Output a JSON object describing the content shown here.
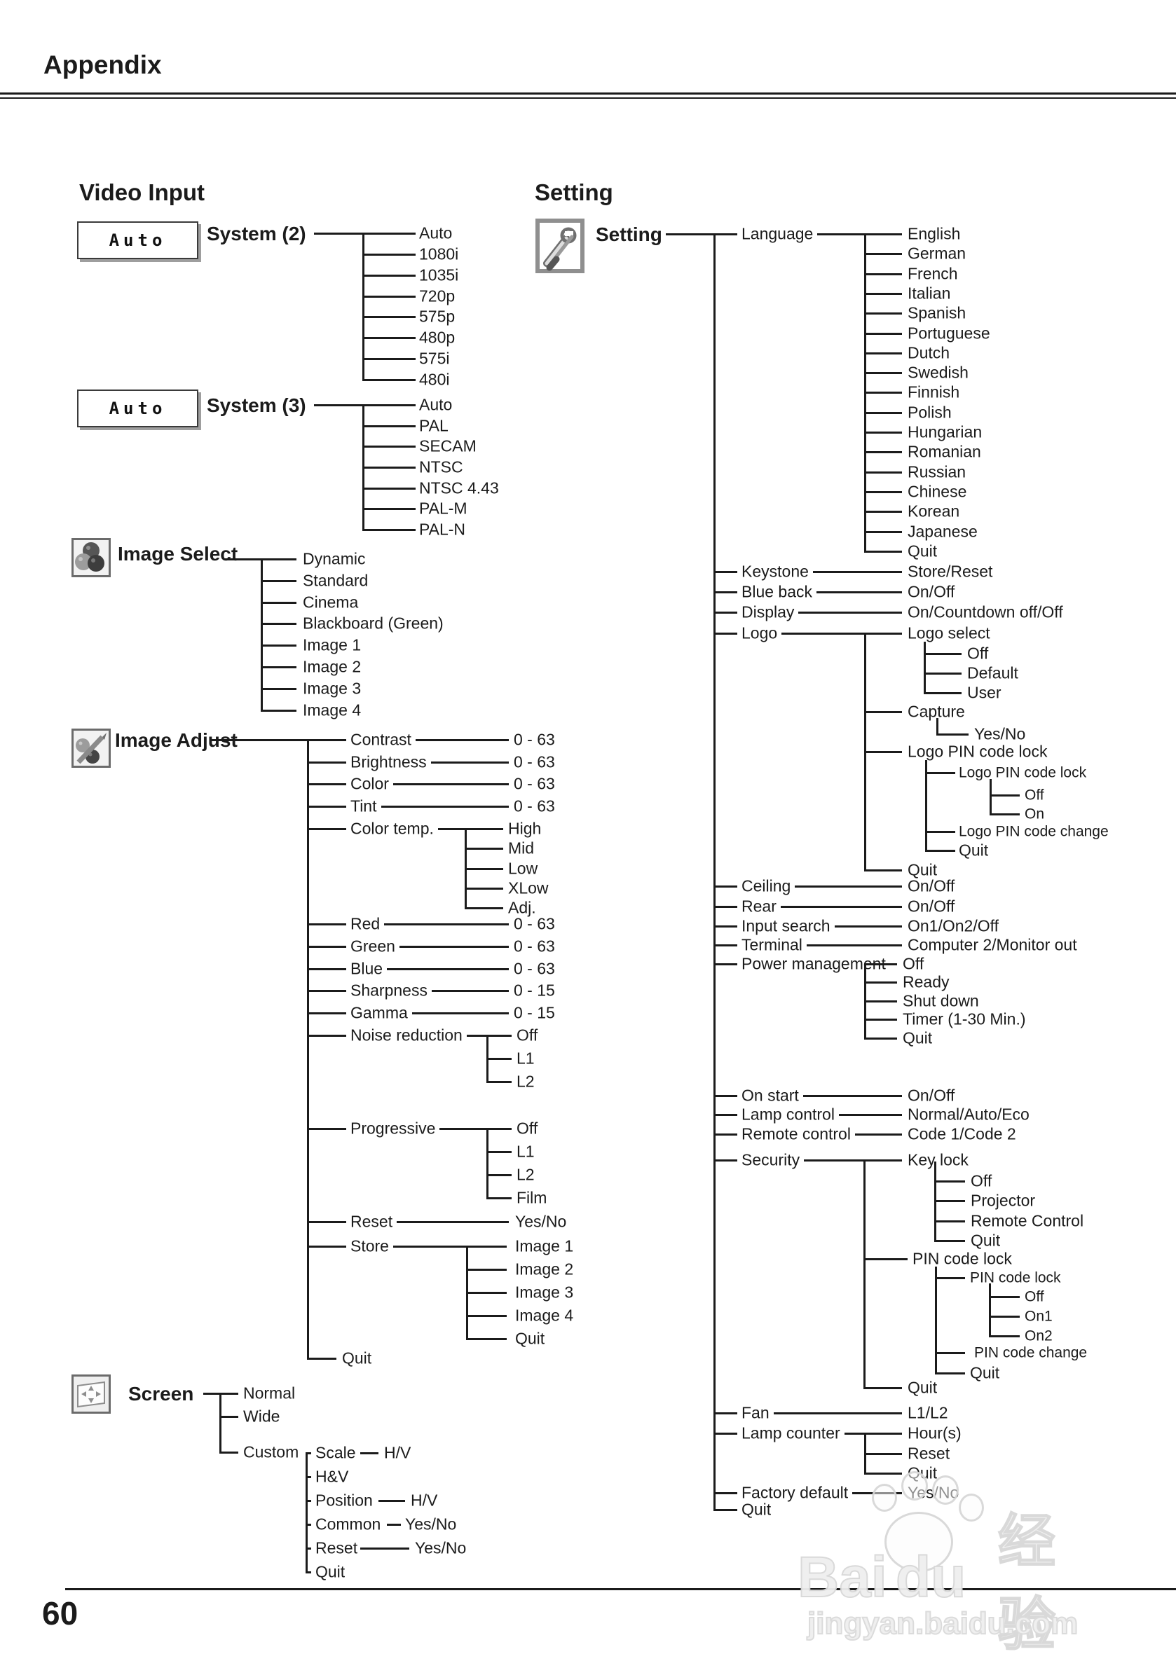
{
  "page": {
    "header": "Appendix",
    "page_number": "60"
  },
  "video_input": {
    "title": "Video Input",
    "system2": {
      "box_value": "Auto",
      "label": "System (2)",
      "options": [
        "Auto",
        "1080i",
        "1035i",
        "720p",
        "575p",
        "480p",
        "575i",
        "480i"
      ]
    },
    "system3": {
      "box_value": "Auto",
      "label": "System (3)",
      "options": [
        "Auto",
        "PAL",
        "SECAM",
        "NTSC",
        "NTSC 4.43",
        "PAL-M",
        "PAL-N"
      ]
    },
    "image_select": {
      "label": "Image Select",
      "options": [
        "Dynamic",
        "Standard",
        "Cinema",
        "Blackboard (Green)",
        "Image 1",
        "Image 2",
        "Image 3",
        "Image 4"
      ]
    },
    "image_adjust": {
      "label": "Image Adjust",
      "rows_a": [
        {
          "label": "Contrast",
          "value": "0 - 63"
        },
        {
          "label": "Brightness",
          "value": "0 - 63"
        },
        {
          "label": "Color",
          "value": "0 - 63"
        },
        {
          "label": "Tint",
          "value": "0 - 63"
        }
      ],
      "color_temp": {
        "label": "Color temp.",
        "options": [
          "High",
          "Mid",
          "Low",
          "XLow",
          "Adj."
        ]
      },
      "rows_b": [
        {
          "label": "Red",
          "value": "0 - 63"
        },
        {
          "label": "Green",
          "value": "0 - 63"
        },
        {
          "label": "Blue",
          "value": "0 - 63"
        },
        {
          "label": "Sharpness",
          "value": "0 - 15"
        },
        {
          "label": "Gamma",
          "value": "0 - 15"
        }
      ],
      "noise_reduction": {
        "label": "Noise reduction",
        "options": [
          "Off",
          "L1",
          "L2"
        ]
      },
      "progressive": {
        "label": "Progressive",
        "options": [
          "Off",
          "L1",
          "L2",
          "Film"
        ]
      },
      "reset": {
        "label": "Reset",
        "value": "Yes/No"
      },
      "store": {
        "label": "Store",
        "options": [
          "Image 1",
          "Image 2",
          "Image 3",
          "Image 4",
          "Quit"
        ]
      },
      "quit": "Quit"
    },
    "screen": {
      "label": "Screen",
      "normal": "Normal",
      "wide": "Wide",
      "custom": {
        "label": "Custom",
        "rows": [
          {
            "label": "Scale",
            "value": "H/V"
          },
          {
            "label": "H&V",
            "value": ""
          },
          {
            "label": "Position",
            "value": "H/V"
          },
          {
            "label": "Common",
            "value": "Yes/No"
          },
          {
            "label": "Reset",
            "value": "Yes/No"
          },
          {
            "label": "Quit",
            "value": ""
          }
        ]
      }
    }
  },
  "setting": {
    "title": "Setting",
    "root_label": "Setting",
    "language": {
      "label": "Language",
      "options": [
        "English",
        "German",
        "French",
        "Italian",
        "Spanish",
        "Portuguese",
        "Dutch",
        "Swedish",
        "Finnish",
        "Polish",
        "Hungarian",
        "Romanian",
        "Russian",
        "Chinese",
        "Korean",
        "Japanese",
        "Quit"
      ]
    },
    "keystone": {
      "label": "Keystone",
      "value": "Store/Reset"
    },
    "blue_back": {
      "label": "Blue back",
      "value": "On/Off"
    },
    "display": {
      "label": "Display",
      "value": "On/Countdown off/Off"
    },
    "logo": {
      "label": "Logo",
      "select": {
        "label": "Logo select",
        "options": [
          "Off",
          "Default",
          "User"
        ]
      },
      "capture": {
        "label": "Capture",
        "value": "Yes/No"
      },
      "pin": {
        "label": "Logo PIN code lock",
        "inner": {
          "label": "Logo PIN code lock",
          "options": [
            "Off",
            "On"
          ]
        },
        "change": "Logo PIN code change",
        "quit": "Quit"
      },
      "quit": "Quit"
    },
    "ceiling": {
      "label": "Ceiling",
      "value": "On/Off"
    },
    "rear": {
      "label": "Rear",
      "value": "On/Off"
    },
    "input_search": {
      "label": "Input search",
      "value": "On1/On2/Off"
    },
    "terminal": {
      "label": "Terminal",
      "value": "Computer 2/Monitor out"
    },
    "power_management": {
      "label": "Power management",
      "options": [
        "Off",
        "Ready",
        "Shut down",
        "Timer (1-30 Min.)",
        "Quit"
      ]
    },
    "on_start": {
      "label": "On start",
      "value": "On/Off"
    },
    "lamp_control": {
      "label": "Lamp control",
      "value": "Normal/Auto/Eco"
    },
    "remote_control": {
      "label": "Remote control",
      "value": "Code 1/Code 2"
    },
    "security": {
      "label": "Security",
      "key_lock": {
        "label": "Key lock",
        "options": [
          "Off",
          "Projector",
          "Remote Control",
          "Quit"
        ]
      },
      "pin": {
        "label": "PIN code lock",
        "inner": {
          "label": "PIN code lock",
          "options": [
            "Off",
            "On1",
            "On2"
          ]
        },
        "change": "PIN code change",
        "quit": "Quit"
      },
      "quit": "Quit"
    },
    "fan": {
      "label": "Fan",
      "value": "L1/L2"
    },
    "lamp_counter": {
      "label": "Lamp counter",
      "options": [
        "Hour(s)",
        "Reset",
        "Quit"
      ]
    },
    "factory_default": {
      "label": "Factory default",
      "value": "Yes/No"
    },
    "quit": "Quit"
  },
  "watermark": {
    "brand_left": "Bai",
    "brand_right": "du",
    "suffix": "经验",
    "url": "jingyan.baidu.com"
  }
}
